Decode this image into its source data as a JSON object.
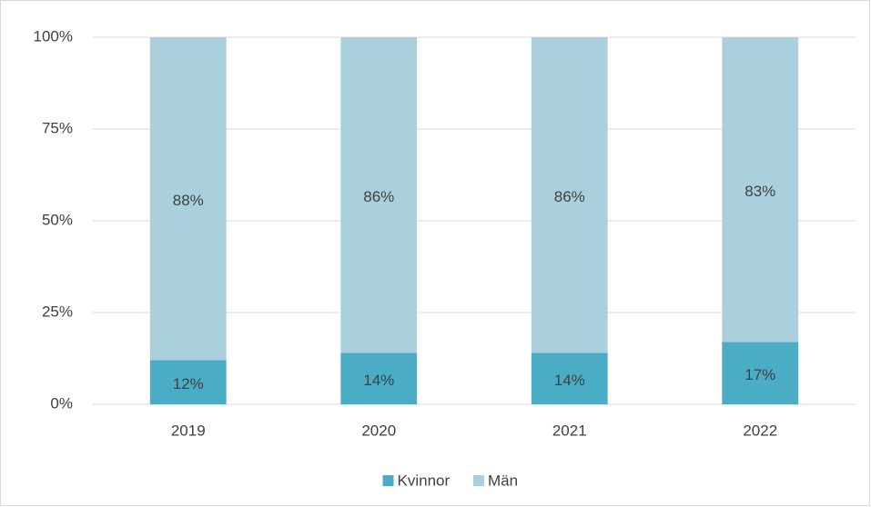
{
  "chart_data": {
    "type": "stacked_bar",
    "categories": [
      "2019",
      "2020",
      "2021",
      "2022"
    ],
    "series": [
      {
        "name": "Kvinnor",
        "color": "#4bacc6",
        "values": [
          12,
          14,
          14,
          17
        ],
        "value_labels": [
          "12%",
          "14%",
          "14%",
          "17%"
        ]
      },
      {
        "name": "Män",
        "color": "#a9d0dc",
        "values": [
          88,
          86,
          86,
          83
        ],
        "value_labels": [
          "88%",
          "86%",
          "86%",
          "83%"
        ]
      }
    ],
    "ylim": [
      0,
      100
    ],
    "yticks": [
      {
        "value": 0,
        "label": "0%"
      },
      {
        "value": 25,
        "label": "25%"
      },
      {
        "value": 50,
        "label": "50%"
      },
      {
        "value": 75,
        "label": "75%"
      },
      {
        "value": 100,
        "label": "100%"
      }
    ],
    "grid": true,
    "legend": "bottom"
  }
}
